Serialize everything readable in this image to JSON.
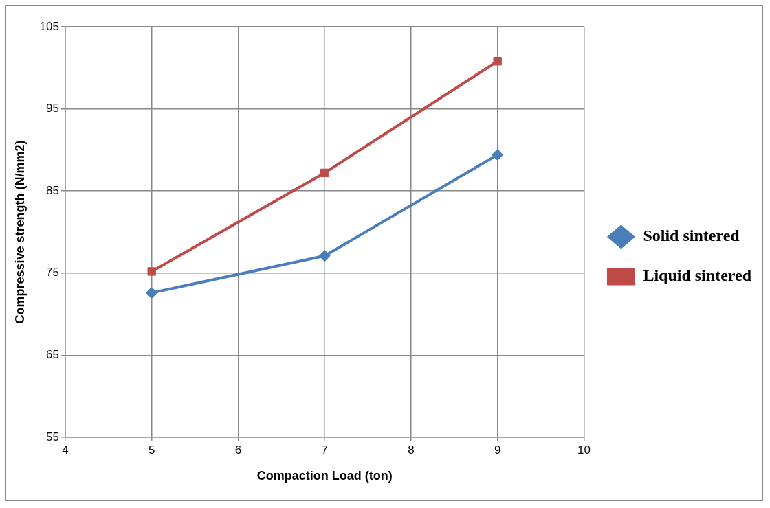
{
  "chart_data": {
    "type": "line",
    "xlabel": "Compaction Load (ton)",
    "ylabel": "Compressive strength (N/mm2)",
    "x": [
      5,
      7,
      9
    ],
    "series": [
      {
        "name": "Solid sintered",
        "color": "#4a7ebb",
        "values": [
          72.6,
          77.1,
          89.4
        ],
        "marker": "diamond"
      },
      {
        "name": "Liquid sintered",
        "color": "#be4b48",
        "values": [
          75.2,
          87.2,
          100.8
        ],
        "marker": "square"
      }
    ],
    "xlim": [
      4,
      10
    ],
    "xticks": [
      4,
      5,
      6,
      7,
      8,
      9,
      10
    ],
    "ylim": [
      55,
      105
    ],
    "yticks": [
      55,
      65,
      75,
      85,
      95,
      105
    ],
    "grid": true,
    "legend": "right",
    "line_style": "solid"
  }
}
